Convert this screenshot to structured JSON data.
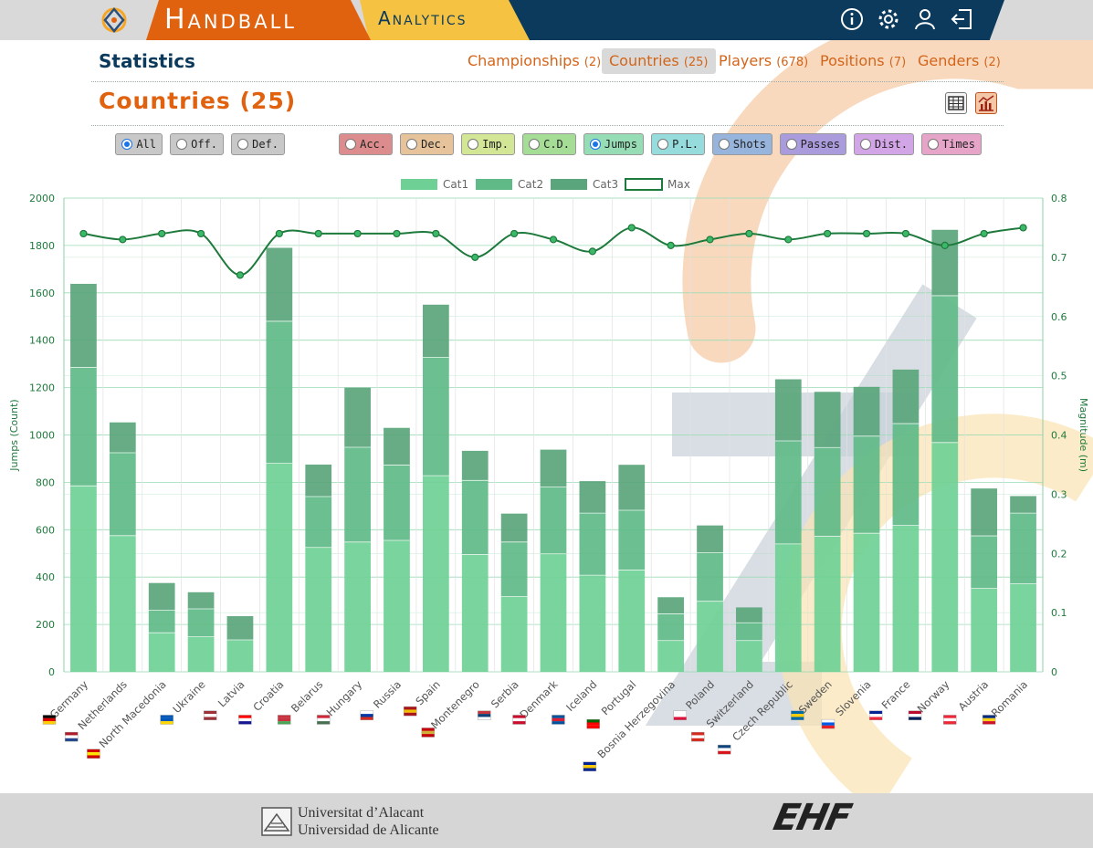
{
  "header": {
    "brand_primary": "Handball",
    "brand_secondary": "Analytics",
    "icons": [
      "info-icon",
      "settings-gear-icon",
      "user-icon",
      "logout-icon"
    ]
  },
  "nav": {
    "section_title": "Statistics",
    "tabs": [
      {
        "label": "Championships",
        "count": "(2)",
        "active": false
      },
      {
        "label": "Countries",
        "count": "(25)",
        "active": true
      },
      {
        "label": "Players",
        "count": "(678)",
        "active": false
      },
      {
        "label": "Positions",
        "count": "(7)",
        "active": false
      },
      {
        "label": "Genders",
        "count": "(2)",
        "active": false
      }
    ]
  },
  "page": {
    "title": "Countries (25)",
    "view_buttons": [
      {
        "icon": "table-view-icon",
        "active": false
      },
      {
        "icon": "chart-view-icon",
        "active": true
      }
    ]
  },
  "filters": [
    {
      "label": "All",
      "color": "#c8c8c8",
      "selected": true
    },
    {
      "label": "Off.",
      "color": "#c8c8c8",
      "selected": false
    },
    {
      "label": "Def.",
      "color": "#c8c8c8",
      "selected": false
    },
    {
      "label": "Acc.",
      "color": "#dc8c8c",
      "selected": false
    },
    {
      "label": "Dec.",
      "color": "#e6c39b",
      "selected": false
    },
    {
      "label": "Imp.",
      "color": "#d2e696",
      "selected": false
    },
    {
      "label": "C.D.",
      "color": "#a5dc96",
      "selected": false
    },
    {
      "label": "Jumps",
      "color": "#96dcb4",
      "selected": true
    },
    {
      "label": "P.L.",
      "color": "#96dcdc",
      "selected": false
    },
    {
      "label": "Shots",
      "color": "#96b4dc",
      "selected": false
    },
    {
      "label": "Passes",
      "color": "#aa9bdc",
      "selected": false
    },
    {
      "label": "Dist.",
      "color": "#d2a5e6",
      "selected": false
    },
    {
      "label": "Times",
      "color": "#e6a5c8",
      "selected": false
    }
  ],
  "chart_data": {
    "type": "bar",
    "stacked": true,
    "ylabel": "Jumps (Count)",
    "y2label": "Magnitude (m)",
    "ylim": [
      0,
      2000
    ],
    "y2lim": [
      0,
      0.8
    ],
    "yticks": [
      0,
      200,
      400,
      600,
      800,
      1000,
      1200,
      1400,
      1600,
      1800,
      2000
    ],
    "y2ticks": [
      "0",
      "0.1",
      "0.2",
      "0.3",
      "0.4",
      "0.5",
      "0.6",
      "0.7",
      "0.8"
    ],
    "legend_position": "top",
    "grid": true,
    "categories": [
      "Germany",
      "Netherlands",
      "North Macedonia",
      "Ukraine",
      "Latvia",
      "Croatia",
      "Belarus",
      "Hungary",
      "Russia",
      "Spain",
      "Montenegro",
      "Serbia",
      "Denmark",
      "Iceland",
      "Portugal",
      "Bosnia Herzegovina",
      "Poland",
      "Switzerland",
      "Czech Republic",
      "Sweden",
      "Slovenia",
      "France",
      "Norway",
      "Austria",
      "Romania"
    ],
    "series": [
      {
        "name": "Cat1",
        "type": "bar",
        "color": "#6fd095",
        "values": [
          785,
          575,
          165,
          148,
          135,
          880,
          525,
          548,
          555,
          828,
          495,
          318,
          498,
          408,
          430,
          132,
          298,
          132,
          540,
          572,
          585,
          618,
          968,
          352,
          372
        ]
      },
      {
        "name": "Cat2",
        "type": "bar",
        "color": "#5fba87",
        "values": [
          500,
          350,
          95,
          118,
          0,
          600,
          215,
          400,
          318,
          500,
          313,
          230,
          282,
          262,
          252,
          113,
          205,
          75,
          435,
          375,
          410,
          430,
          620,
          222,
          298
        ]
      },
      {
        "name": "Cat3",
        "type": "bar",
        "color": "#5aa57b",
        "values": [
          353,
          128,
          115,
          70,
          100,
          310,
          135,
          252,
          157,
          222,
          125,
          120,
          158,
          135,
          192,
          70,
          115,
          65,
          260,
          235,
          208,
          228,
          278,
          200,
          72
        ]
      },
      {
        "name": "Max",
        "type": "line",
        "axis": "y2",
        "color": "#1e7a3c",
        "values": [
          0.74,
          0.73,
          0.74,
          0.74,
          0.67,
          0.74,
          0.74,
          0.74,
          0.74,
          0.74,
          0.7,
          0.74,
          0.73,
          0.71,
          0.75,
          0.72,
          0.73,
          0.74,
          0.73,
          0.74,
          0.74,
          0.74,
          0.72,
          0.74,
          0.75
        ]
      }
    ],
    "flags": [
      [
        "#000000",
        "#dd0000",
        "#ffce00"
      ],
      [
        "#ae1c28",
        "#ffffff",
        "#21468b"
      ],
      [
        "#d20000",
        "#ffe600",
        "#d20000"
      ],
      [
        "#0057b7",
        "#0057b7",
        "#ffd700"
      ],
      [
        "#9e3039",
        "#ffffff",
        "#9e3039"
      ],
      [
        "#ff0000",
        "#ffffff",
        "#171796"
      ],
      [
        "#c8313e",
        "#c8313e",
        "#4aa657"
      ],
      [
        "#ce2939",
        "#ffffff",
        "#477050"
      ],
      [
        "#ffffff",
        "#0039a6",
        "#d52b1e"
      ],
      [
        "#aa151b",
        "#f1bf00",
        "#aa151b"
      ],
      [
        "#c40308",
        "#d4af37",
        "#c40308"
      ],
      [
        "#c6363c",
        "#0c4076",
        "#ffffff"
      ],
      [
        "#c8102e",
        "#ffffff",
        "#c8102e"
      ],
      [
        "#02529c",
        "#dc1e35",
        "#02529c"
      ],
      [
        "#006600",
        "#ff0000",
        "#ff0000"
      ],
      [
        "#002395",
        "#fecb00",
        "#002395"
      ],
      [
        "#ffffff",
        "#ffffff",
        "#dc143c"
      ],
      [
        "#d52b1e",
        "#ffffff",
        "#d52b1e"
      ],
      [
        "#11457e",
        "#ffffff",
        "#d7141a"
      ],
      [
        "#006aa7",
        "#fecc00",
        "#006aa7"
      ],
      [
        "#ffffff",
        "#005ce6",
        "#ed1c24"
      ],
      [
        "#002395",
        "#ffffff",
        "#ed2939"
      ],
      [
        "#ba0c2f",
        "#ffffff",
        "#00205b"
      ],
      [
        "#ed2939",
        "#ffffff",
        "#ed2939"
      ],
      [
        "#002b7f",
        "#fcd116",
        "#ce1126"
      ]
    ]
  },
  "footer": {
    "university_line1": "Universitat d’Alacant",
    "university_line2": "Universidad de Alicante",
    "partner_logo": "EHF"
  }
}
